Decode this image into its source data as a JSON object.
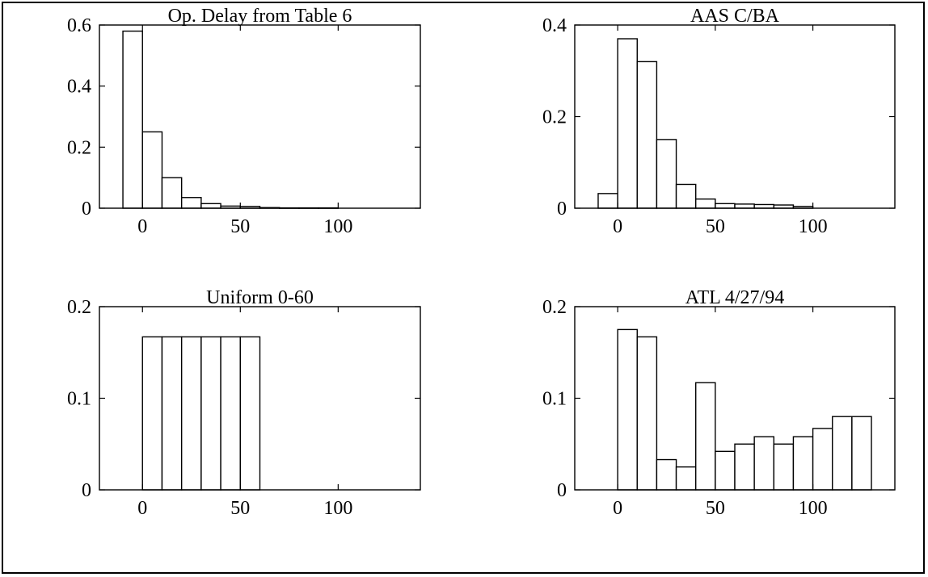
{
  "chart_data": [
    {
      "type": "bar",
      "title": "Op. Delay from Table 6",
      "xlim": [
        -22,
        142
      ],
      "ylim": [
        0,
        0.6
      ],
      "xticks": [
        0,
        50,
        100
      ],
      "xtick_labels": [
        "0",
        "50",
        "100"
      ],
      "yticks": [
        0,
        0.2,
        0.4,
        0.6
      ],
      "ytick_labels": [
        "0",
        "0.2",
        "0.4",
        "0.6"
      ],
      "bin_width": 10,
      "bin_centers": [
        -5,
        5,
        15,
        25,
        35,
        45,
        55,
        65,
        75,
        85,
        95
      ],
      "values": [
        0.58,
        0.25,
        0.1,
        0.035,
        0.015,
        0.007,
        0.006,
        0.002,
        0.001,
        0.001,
        0.001
      ]
    },
    {
      "type": "bar",
      "title": "AAS C/BA",
      "xlim": [
        -22,
        142
      ],
      "ylim": [
        0,
        0.4
      ],
      "xticks": [
        0,
        50,
        100
      ],
      "xtick_labels": [
        "0",
        "50",
        "100"
      ],
      "yticks": [
        0,
        0.2,
        0.4
      ],
      "ytick_labels": [
        "0",
        "0.2",
        "0.4"
      ],
      "bin_width": 10,
      "bin_centers": [
        -5,
        5,
        15,
        25,
        35,
        45,
        55,
        65,
        75,
        85,
        95
      ],
      "values": [
        0.032,
        0.37,
        0.32,
        0.15,
        0.052,
        0.02,
        0.01,
        0.009,
        0.008,
        0.007,
        0.004
      ]
    },
    {
      "type": "bar",
      "title": "Uniform 0-60",
      "xlim": [
        -22,
        142
      ],
      "ylim": [
        0,
        0.2
      ],
      "xticks": [
        0,
        50,
        100
      ],
      "xtick_labels": [
        "0",
        "50",
        "100"
      ],
      "yticks": [
        0,
        0.1,
        0.2
      ],
      "ytick_labels": [
        "0",
        "0.1",
        "0.2"
      ],
      "bin_width": 10,
      "bin_centers": [
        5,
        15,
        25,
        35,
        45,
        55
      ],
      "values": [
        0.167,
        0.167,
        0.167,
        0.167,
        0.167,
        0.167
      ]
    },
    {
      "type": "bar",
      "title": "ATL 4/27/94",
      "xlim": [
        -22,
        142
      ],
      "ylim": [
        0,
        0.2
      ],
      "xticks": [
        0,
        50,
        100
      ],
      "xtick_labels": [
        "0",
        "50",
        "100"
      ],
      "yticks": [
        0,
        0.1,
        0.2
      ],
      "ytick_labels": [
        "0",
        "0.1",
        "0.2"
      ],
      "bin_width": 10,
      "bin_centers": [
        5,
        15,
        25,
        35,
        45,
        55,
        65,
        75,
        85,
        95,
        105,
        115,
        125
      ],
      "values": [
        0.175,
        0.167,
        0.033,
        0.025,
        0.117,
        0.042,
        0.05,
        0.058,
        0.05,
        0.058,
        0.067,
        0.08,
        0.08
      ]
    }
  ]
}
